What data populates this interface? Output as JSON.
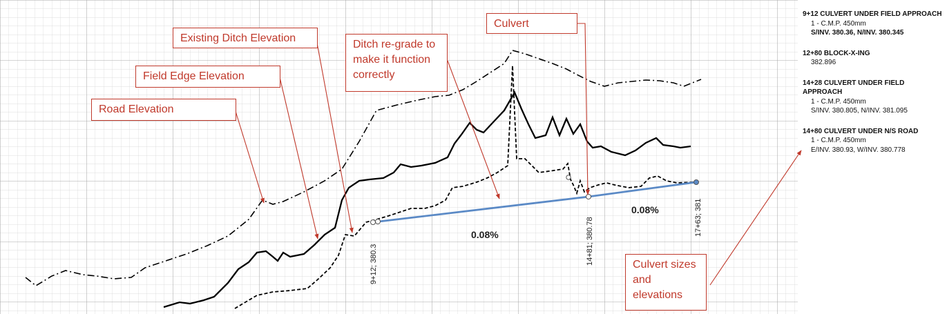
{
  "callouts": {
    "existing_ditch": "Existing Ditch Elevation",
    "field_edge": "Field Edge Elevation",
    "road": "Road Elevation",
    "regrade": "Ditch re-grade to make it function correctly",
    "culvert": "Culvert",
    "culvert_sizes": "Culvert sizes and elevations"
  },
  "grades": [
    "0.08%",
    "0.08%"
  ],
  "stations": [
    "9+12; 380.3",
    "14+81; 380.78",
    "17+63; 381"
  ],
  "notes": [
    {
      "title": "9+12 CULVERT UNDER FIELD APPROACH",
      "lines": [
        "1 - C.M.P. 450mm",
        "S/INV. 380.36, N/INV. 380.345"
      ]
    },
    {
      "title": "12+80 BLOCK-X-ING",
      "lines": [
        "382.896"
      ]
    },
    {
      "title": "14+28 CULVERT UNDER FIELD APPROACH",
      "lines": [
        "1 - C.M.P. 450mm",
        "S/INV. 380.805, N/INV. 381.095"
      ]
    },
    {
      "title": "14+80 CULVERT UNDER N/S ROAD",
      "lines": [
        "1 - C.M.P. 450mm",
        "E/INV. 380.93, W/INV. 380.778"
      ]
    }
  ],
  "colors": {
    "callout": "#c0392b",
    "regrade_line": "#5b8ac6",
    "profile": "#000000",
    "grid_minor": "#d4d4d4",
    "grid_major": "#a8a8a8"
  },
  "legend_lines": {
    "road": "dash-dot",
    "field_edge": "solid",
    "existing_ditch": "dashed",
    "regrade": "solid blue"
  }
}
